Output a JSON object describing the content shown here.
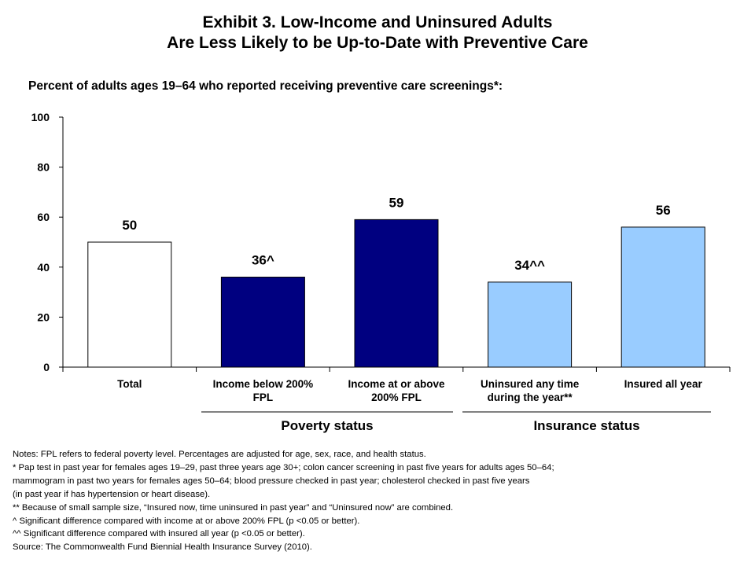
{
  "header": {
    "title_line1": "Exhibit 3. Low-Income and Uninsured Adults",
    "title_line2": "Are Less Likely to be Up-to-Date with Preventive Care",
    "subtitle": "Percent of adults ages 19–64 who reported receiving preventive care screenings*:"
  },
  "chart_data": {
    "type": "bar",
    "categories": [
      [
        "Total"
      ],
      [
        "Income below 200%",
        "FPL"
      ],
      [
        "Income at or above",
        "200% FPL"
      ],
      [
        "Uninsured any time",
        "during the year**"
      ],
      [
        "Insured all year"
      ]
    ],
    "values": [
      50,
      36,
      59,
      34,
      56
    ],
    "data_labels": [
      "50",
      "36^",
      "59",
      "34^^",
      "56"
    ],
    "bar_colors": [
      "#ffffff",
      "#000080",
      "#000080",
      "#99ccff",
      "#99ccff"
    ],
    "yticks": [
      "0",
      "20",
      "40",
      "60",
      "80",
      "100"
    ],
    "ylim": [
      0,
      100
    ],
    "xlabel": "",
    "ylabel": "",
    "groups": [
      {
        "label": "Poverty status"
      },
      {
        "label": "Insurance status"
      }
    ]
  },
  "notes": [
    "Notes: FPL refers to federal poverty level. Percentages are adjusted for age, sex, race, and health status.",
    "* Pap test in past year for females ages 19–29, past three years age 30+; colon cancer screening in past five years for adults ages 50–64;",
    "mammogram in past two years for females ages 50–64; blood pressure checked in past year; cholesterol checked in past five years",
    "(in past year if has hypertension or heart disease).",
    "** Because of small sample size, “Insured now, time uninsured in past year” and “Uninsured now” are combined.",
    "^ Significant difference compared with income at or above 200% FPL (p <0.05 or better).",
    "^^ Significant difference compared with insured all year (p <0.05 or better).",
    "Source: The Commonwealth Fund Biennial Health Insurance Survey (2010)."
  ]
}
